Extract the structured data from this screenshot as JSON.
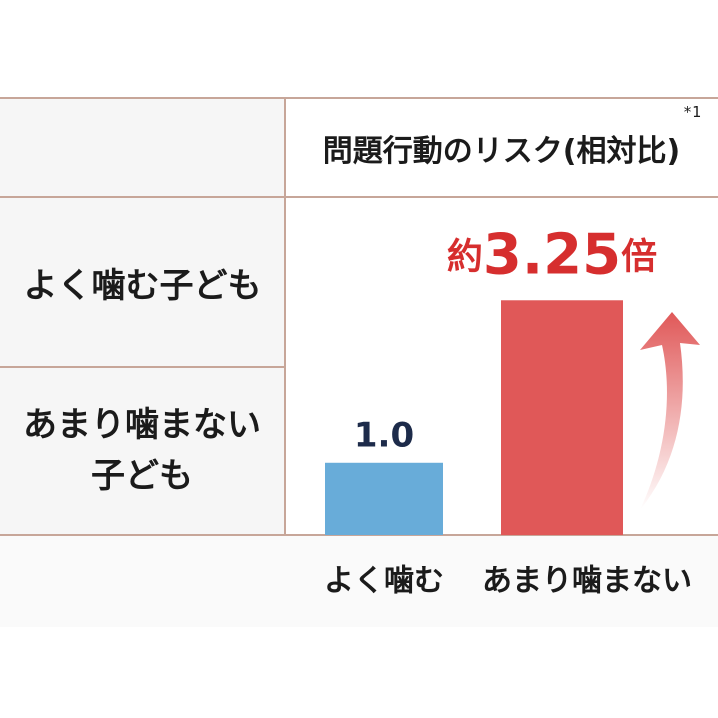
{
  "table": {
    "header": "問題行動のリスク(相対比)",
    "note": "*1",
    "rows": [
      "よく噛む子ども",
      "あまり噛まない子ども"
    ]
  },
  "chart_data": {
    "type": "bar",
    "categories": [
      "よく噛む",
      "あまり噛まない"
    ],
    "values": [
      1.0,
      3.25
    ],
    "value_labels": [
      "1.0",
      "約3.25倍"
    ],
    "colors": [
      "#68acd9",
      "#e05858"
    ],
    "label_colors": [
      "#1d2b4a",
      "#d62e2e"
    ],
    "ylim": [
      0,
      4.5
    ]
  }
}
